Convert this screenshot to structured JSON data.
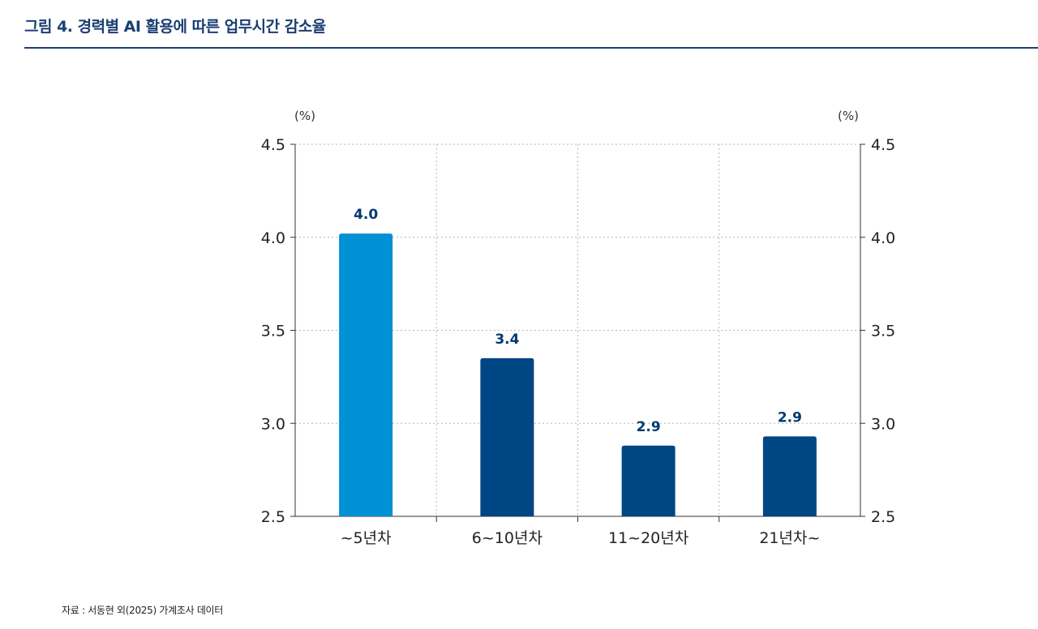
{
  "figure": {
    "title": "그림 4. 경력별 AI 활용에 따른 업무시간 감소율",
    "source": "자료 : 서동현 외(2025) 가계조사 데이터"
  },
  "colors": {
    "title": "#1b3f73",
    "bar_highlight": "#0090d4",
    "bar_default": "#004684",
    "data_label": "#003a72",
    "grid": "#b8b8b8",
    "axis": "#333333"
  },
  "chart_data": {
    "type": "bar",
    "categories": [
      "~5년차",
      "6~10년차",
      "11~20년차",
      "21년차~"
    ],
    "values": [
      4.02,
      3.35,
      2.88,
      2.93
    ],
    "data_labels": [
      "4.0",
      "3.4",
      "2.9",
      "2.9"
    ],
    "highlight_index": 0,
    "ylim": [
      2.5,
      4.5
    ],
    "yticks": [
      "2.5",
      "3.0",
      "3.5",
      "4.0",
      "4.5"
    ],
    "ylabel_left": "(%)",
    "ylabel_right": "(%)",
    "grid": true
  }
}
